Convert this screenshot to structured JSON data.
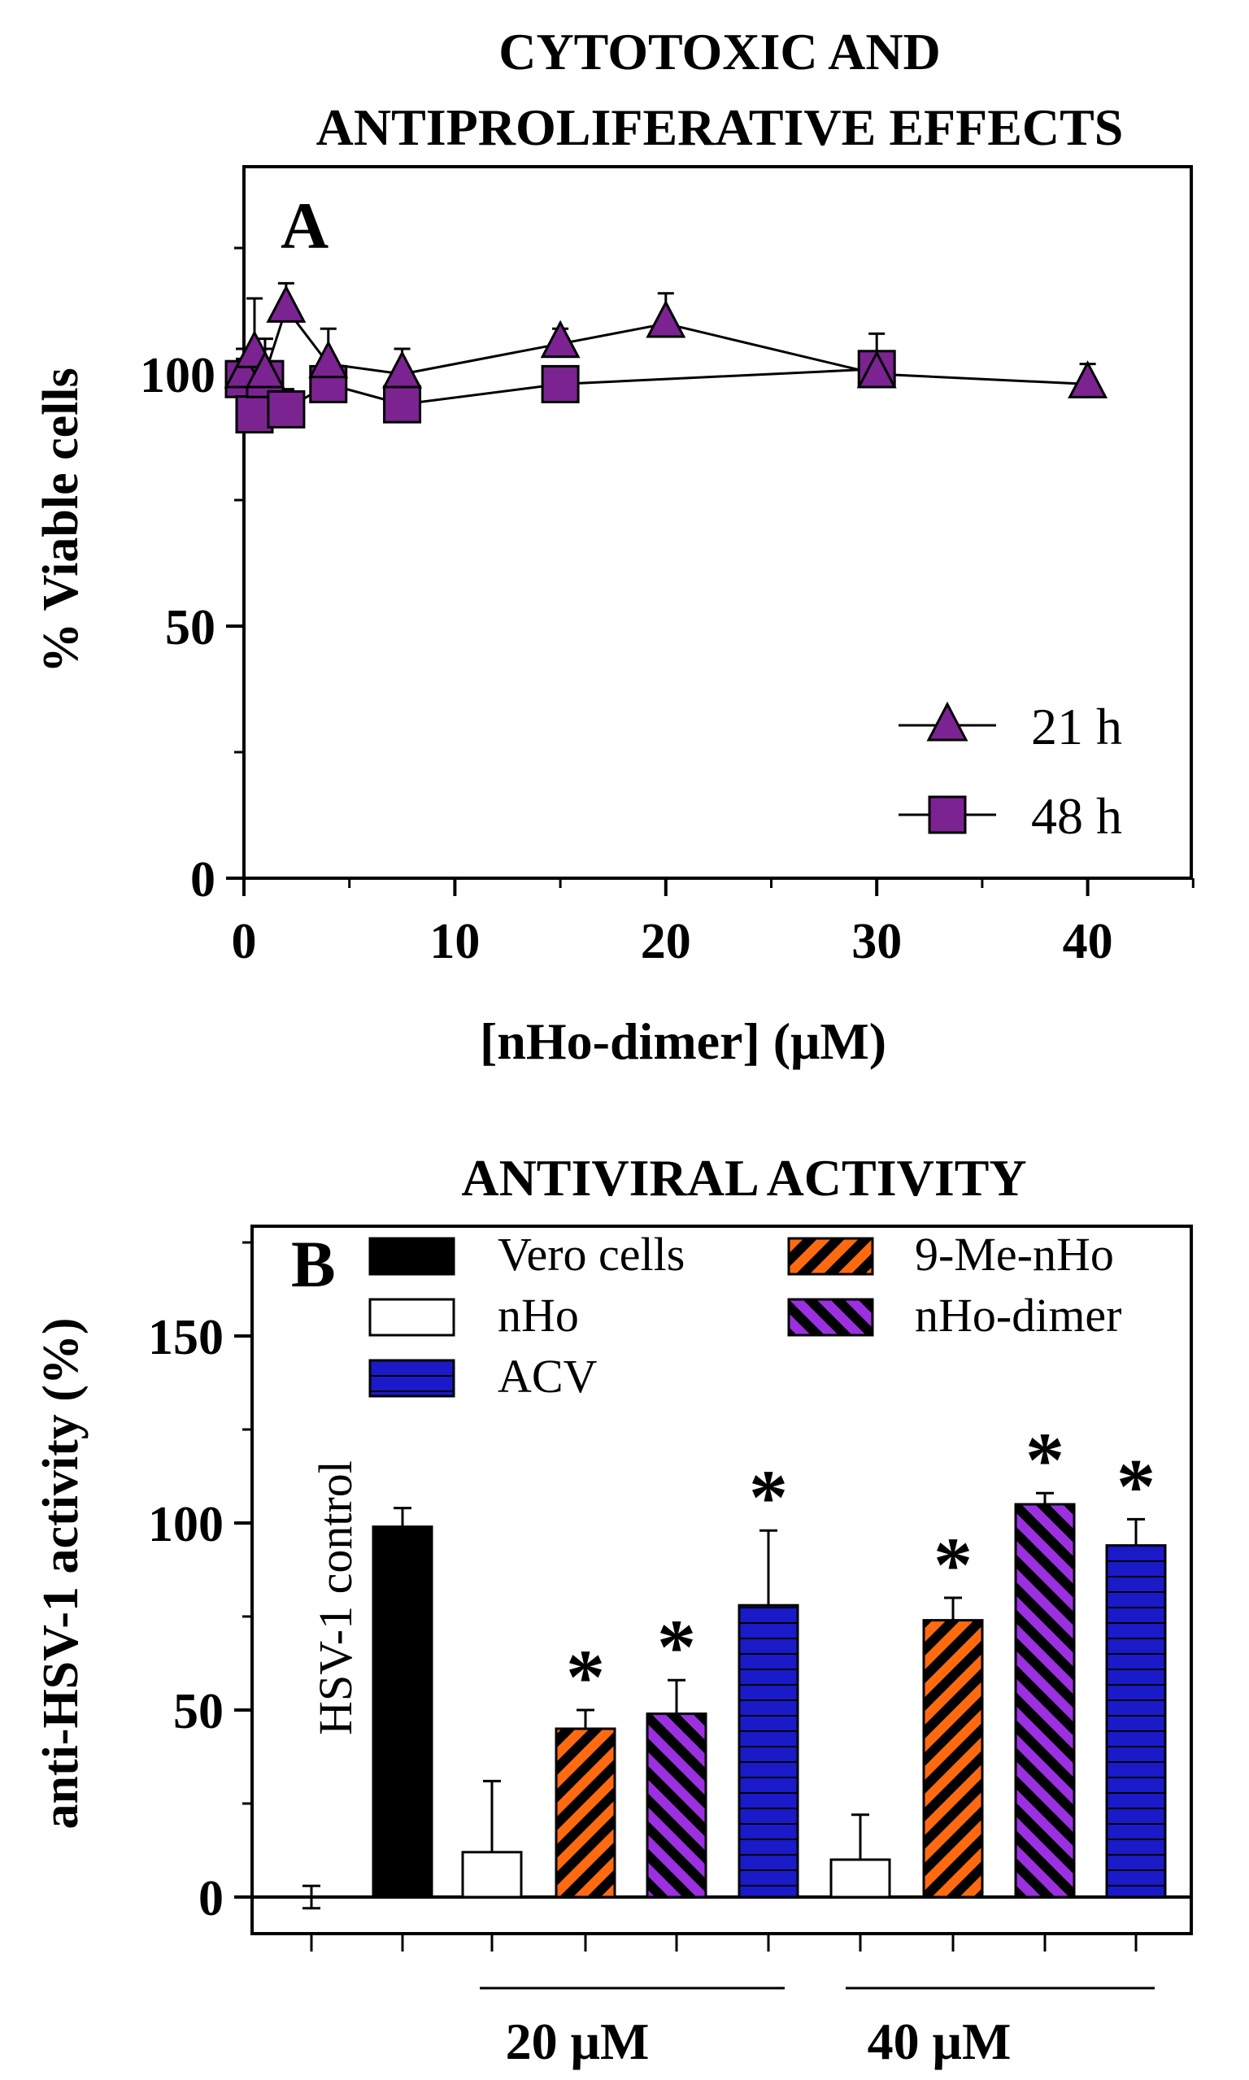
{
  "panelA": {
    "title_line1": "CYTOTOXIC AND",
    "title_line2": "ANTIPROLIFERATIVE EFFECTS",
    "panel_letter": "A"
  },
  "panelB": {
    "title": "ANTIVIRAL ACTIVITY",
    "panel_letter": "B",
    "rotated_label": "HSV-1 control",
    "group_labels": [
      "20 μM",
      "40 μM"
    ],
    "significance_mark": "*"
  },
  "chart_data": [
    {
      "type": "line",
      "title": "CYTOTOXIC AND ANTIPROLIFERATIVE EFFECTS",
      "xlabel": "[nHo-dimer] (μM)",
      "ylabel": "% Viable cells",
      "xlim": [
        0,
        45
      ],
      "ylim": [
        0,
        140
      ],
      "xticks": [
        0,
        10,
        20,
        30,
        40
      ],
      "yticks": [
        0,
        50,
        100
      ],
      "legend_position": "bottom-right",
      "series": [
        {
          "name": "21 h",
          "marker": "triangle",
          "color": "#7B2391",
          "x": [
            0,
            0.5,
            1,
            2,
            4,
            7.5,
            15,
            20,
            30,
            40
          ],
          "y": [
            100,
            104,
            100,
            113,
            102,
            100,
            106,
            110,
            100,
            98
          ],
          "err": [
            5,
            11,
            7,
            5,
            7,
            5,
            3,
            6,
            4,
            4
          ]
        },
        {
          "name": "48 h",
          "marker": "square",
          "color": "#7B2391",
          "x": [
            0,
            0.5,
            1,
            2,
            4,
            7.5,
            15,
            30
          ],
          "y": [
            99,
            92,
            99,
            93,
            98,
            94,
            98,
            101
          ],
          "err": [
            4,
            5,
            6,
            4,
            4,
            3,
            3,
            7
          ]
        }
      ]
    },
    {
      "type": "bar",
      "title": "ANTIVIRAL ACTIVITY",
      "xlabel": "",
      "ylabel": "anti-HSV-1 activity (%)",
      "ylim": [
        -7,
        178
      ],
      "yticks": [
        0,
        50,
        100,
        150
      ],
      "categories": [
        "HSV-1 control",
        "Vero cells",
        "nHo",
        "9-Me-nHo",
        "nHo-dimer",
        "ACV",
        "nHo",
        "9-Me-nHo",
        "nHo-dimer",
        "ACV"
      ],
      "groups": [
        "",
        "",
        "20 μM",
        "20 μM",
        "20 μM",
        "20 μM",
        "40 μM",
        "40 μM",
        "40 μM",
        "40 μM"
      ],
      "values": [
        0,
        99,
        12,
        45,
        49,
        78,
        10,
        74,
        105,
        94
      ],
      "errors": [
        3,
        5,
        19,
        5,
        9,
        20,
        12,
        6,
        3,
        7
      ],
      "significant": [
        false,
        false,
        false,
        true,
        true,
        true,
        false,
        true,
        true,
        true
      ],
      "legend_position": "top",
      "legend": [
        {
          "label": "Vero cells",
          "fill": "solid",
          "color": "#000000"
        },
        {
          "label": "nHo",
          "fill": "none",
          "color": "#ffffff"
        },
        {
          "label": "ACV",
          "fill": "horizontal-lines",
          "color": "#1A1AC8"
        },
        {
          "label": "9-Me-nHo",
          "fill": "diagonal-stripes",
          "color": "#FF6A10"
        },
        {
          "label": "nHo-dimer",
          "fill": "diagonal-stripes",
          "color": "#9B30E0"
        }
      ]
    }
  ]
}
